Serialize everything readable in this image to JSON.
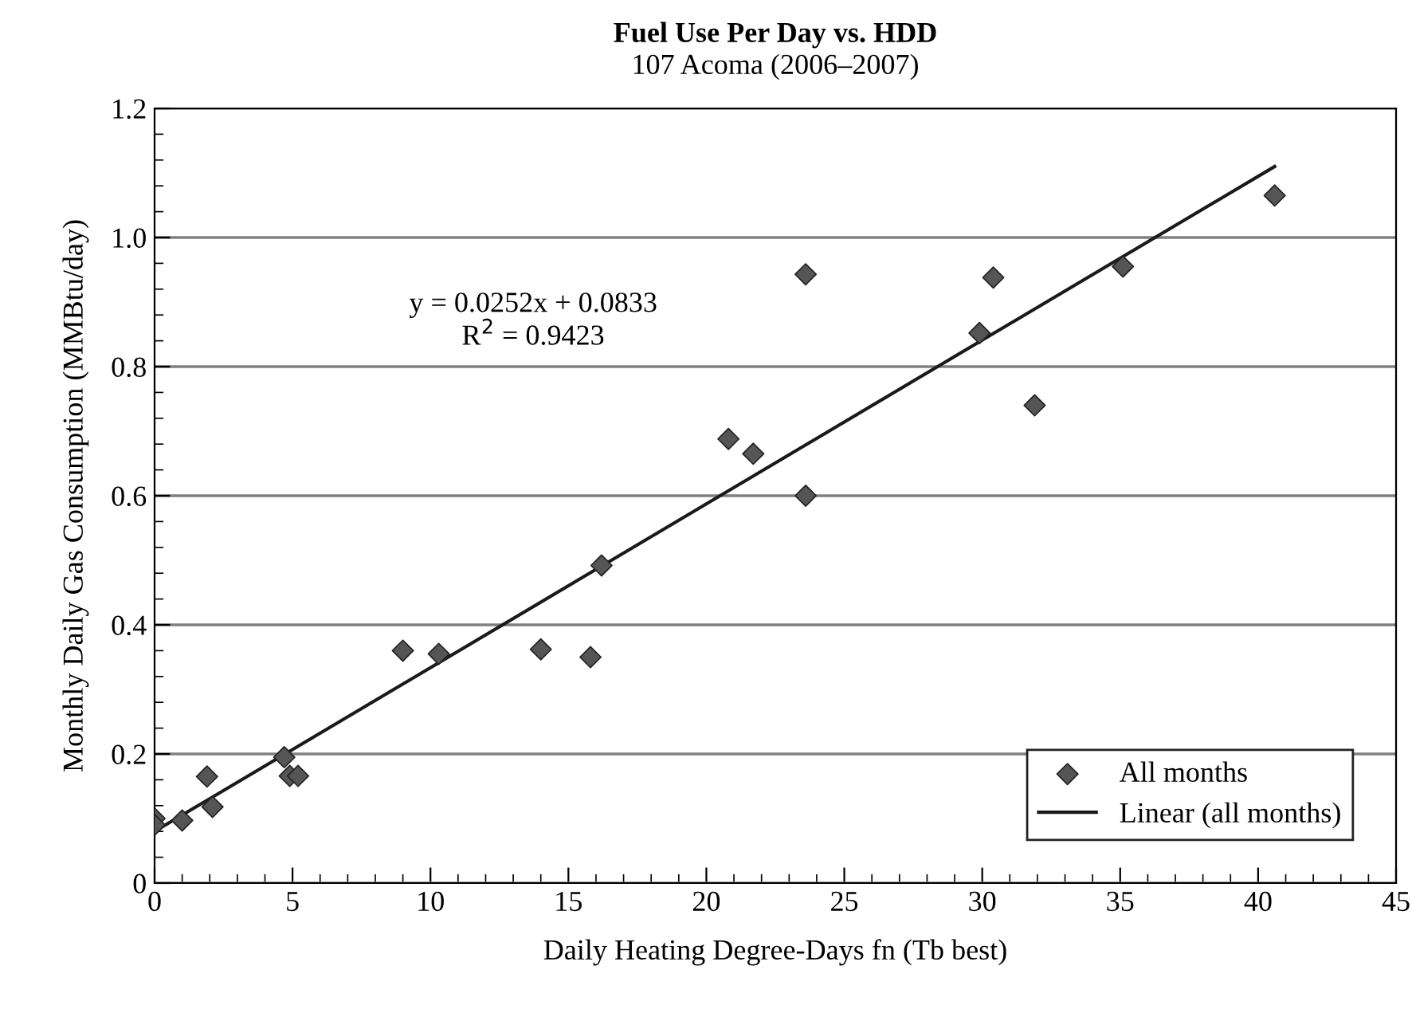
{
  "chart_data": {
    "type": "scatter",
    "title": "Fuel Use Per Day vs. HDD",
    "subtitle": "107 Acoma (2006–2007)",
    "xlabel": "Daily Heating Degree-Days fn (Tb best)",
    "ylabel": "Monthly Daily Gas Consumption (MMBtu/day)",
    "annotations": [
      "y = 0.0252x + 0.0833\nR$^{2}$ = 0.9423"
    ],
    "series": [
      {
        "name": "All months",
        "marker": "diamond",
        "color": "#555555",
        "x": [
          0,
          0,
          1,
          1.9,
          2.1,
          4.7,
          4.9,
          5.2,
          9,
          10.3,
          14,
          15.8,
          16.2,
          20.8,
          21.7,
          23.6,
          23.6,
          29.9,
          30.4,
          31.9,
          35.1,
          40.6
        ],
        "values": [
          0.1,
          0.09,
          0.097,
          0.165,
          0.118,
          0.195,
          0.166,
          0.166,
          0.36,
          0.355,
          0.362,
          0.35,
          0.492,
          0.688,
          0.665,
          0.943,
          0.6,
          0.852,
          0.938,
          0.74,
          0.955,
          1.065
        ]
      },
      {
        "name": "Linear (all months)",
        "type": "line",
        "line_style": "solid",
        "color": "#1a1a1a",
        "x": [
          0,
          40.6
        ],
        "values": [
          0.08,
          1.11
        ]
      }
    ],
    "xlim": [
      0,
      45
    ],
    "ylim": [
      0,
      1.2
    ],
    "xticks": [
      0,
      5,
      10,
      15,
      20,
      25,
      30,
      35,
      40,
      45
    ],
    "yticks": [
      0,
      0.2,
      0.4,
      0.6,
      0.8,
      {
        "value": 1,
        "label": "1.0"
      },
      1.2
    ],
    "grid": "y",
    "legend": "bottom right"
  }
}
